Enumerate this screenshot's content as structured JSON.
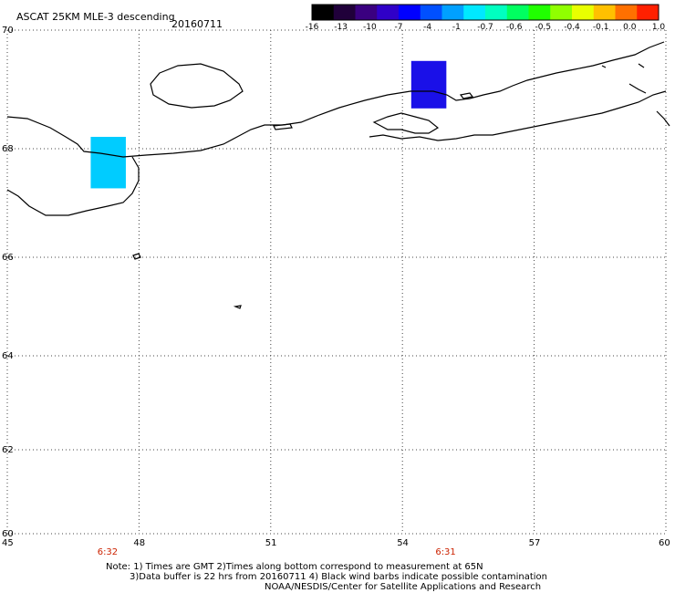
{
  "header": {
    "title": "ASCAT 25KM MLE-3 descending",
    "date": "20160711"
  },
  "colorbar": {
    "colors": [
      "#000000",
      "#20003a",
      "#3a0080",
      "#3000c8",
      "#0000ff",
      "#0050ff",
      "#00a0ff",
      "#00e8ff",
      "#00ffc0",
      "#00ff60",
      "#20ff00",
      "#90ff00",
      "#e8ff00",
      "#ffc000",
      "#ff7000",
      "#ff2000"
    ],
    "tick_labels": [
      "-16",
      "-13",
      "-10",
      "-7",
      "-4",
      "-1",
      "-0.7",
      "-0.6",
      "-0.5",
      "-0.4",
      "-0.1",
      "0.0",
      "1.0"
    ]
  },
  "map": {
    "lat_labels": [
      "70",
      "68",
      "66",
      "64",
      "62",
      "60"
    ],
    "lon_labels": [
      "45",
      "48",
      "51",
      "54",
      "57",
      "60"
    ],
    "pass_times": [
      {
        "lon": 47.3,
        "label": "6:32"
      },
      {
        "lon": 55.0,
        "label": "6:31"
      }
    ],
    "data_cells": [
      {
        "name": "cyan-data-cell",
        "color": "#00ccff",
        "lon": [
          46.9,
          47.7
        ],
        "lat": [
          67.27,
          68.2
        ]
      },
      {
        "name": "blue-data-cell",
        "color": "#1a10e8",
        "lon": [
          54.2,
          55.0
        ],
        "lat": [
          68.68,
          69.48
        ]
      }
    ]
  },
  "notes": {
    "line1": "Note: 1) Times are GMT 2)Times along bottom correspond to measurement at 65N",
    "line2": "3)Data buffer is 22 hrs from 20160711 4) Black wind barbs indicate possible contamination",
    "line3": "NOAA/NESDIS/Center for Satellite Applications and Research"
  }
}
